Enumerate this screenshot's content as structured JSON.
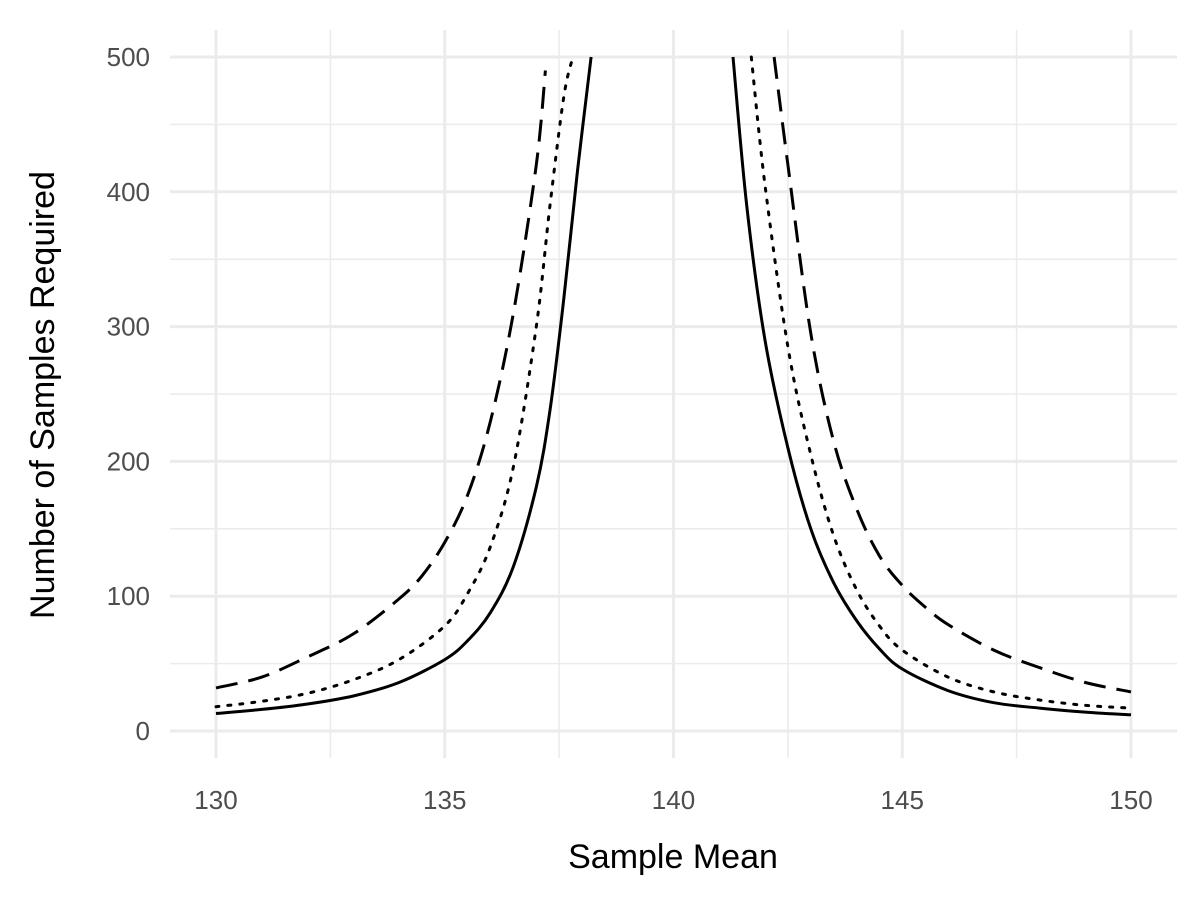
{
  "chart_data": {
    "type": "line",
    "title": "",
    "xlabel": "Sample Mean",
    "ylabel": "Number of Samples Required",
    "xlim": [
      130,
      150
    ],
    "ylim": [
      0,
      500
    ],
    "x_ticks": [
      130,
      135,
      140,
      145,
      150
    ],
    "y_ticks": [
      0,
      100,
      200,
      300,
      400,
      500
    ],
    "grid": true,
    "legend": "none",
    "colors": {
      "line": "#000000",
      "grid": "#ebebeb",
      "tick_text": "#4d4d4d"
    },
    "series": [
      {
        "line_style": "solid",
        "segments": [
          {
            "x": [
              130,
              131,
              132,
              133,
              134,
              135,
              135.5,
              136,
              136.5,
              137,
              137.3,
              137.6,
              137.9,
              138.2
            ],
            "y": [
              13,
              16,
              20,
              26,
              36,
              53,
              67,
              88,
              122,
              181,
              238,
              320,
              415,
              500
            ]
          },
          {
            "x": [
              141.3,
              141.6,
              142,
              142.5,
              143,
              143.5,
              144,
              144.5,
              145,
              146,
              147,
              148,
              149,
              150
            ],
            "y": [
              500,
              390,
              290,
              210,
              150,
              110,
              82,
              61,
              46,
              30,
              21,
              17,
              14,
              12
            ]
          }
        ]
      },
      {
        "line_style": "dotted",
        "segments": [
          {
            "x": [
              130,
              131,
              132,
              133,
              134,
              135,
              135.5,
              136,
              136.5,
              137,
              137.3,
              137.6,
              137.8
            ],
            "y": [
              18,
              22,
              28,
              38,
              53,
              78,
              102,
              137,
              196,
              300,
              390,
              470,
              500
            ]
          },
          {
            "x": [
              141.7,
              142,
              142.5,
              143,
              143.5,
              144,
              144.5,
              145,
              146,
              147,
              148,
              149,
              150
            ],
            "y": [
              500,
              405,
              285,
              205,
              145,
              105,
              78,
              60,
              40,
              29,
              23,
              19,
              17
            ]
          }
        ]
      },
      {
        "line_style": "dashed",
        "segments": [
          {
            "x": [
              130,
              131,
              132,
              133,
              134,
              134.5,
              135,
              135.5,
              136,
              136.5,
              137,
              137.2
            ],
            "y": [
              32,
              40,
              55,
              72,
              98,
              115,
              140,
              175,
              230,
              310,
              420,
              490
            ]
          },
          {
            "x": [
              142.2,
              142.5,
              143,
              143.5,
              144,
              144.5,
              145,
              145.5,
              146,
              147,
              148,
              149,
              150
            ],
            "y": [
              500,
              420,
              295,
              215,
              165,
              130,
              108,
              92,
              79,
              60,
              47,
              36,
              29
            ]
          }
        ]
      }
    ]
  }
}
